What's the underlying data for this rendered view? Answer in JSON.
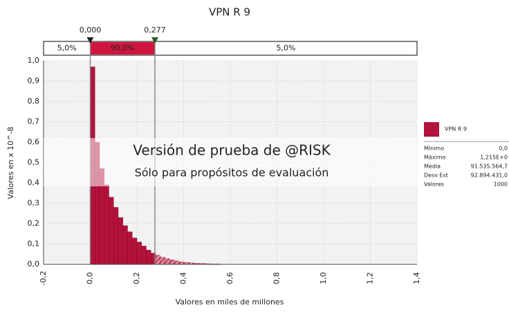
{
  "chart_data": {
    "type": "histogram",
    "title": "VPN R 9",
    "xlabel": "Valores en miles de millones",
    "ylabel": "Valores en x 10^-8",
    "bins": [
      0,
      0.02,
      0.04,
      0.06,
      0.08,
      0.1,
      0.12,
      0.14,
      0.16,
      0.18,
      0.2,
      0.22,
      0.24,
      0.26,
      0.28,
      0.3,
      0.32,
      0.34,
      0.36,
      0.38,
      0.4,
      0.42,
      0.44,
      0.46,
      0.48,
      0.5,
      0.52,
      0.54,
      0.56,
      0.58,
      0.6
    ],
    "counts": [
      0.97,
      0.6,
      0.47,
      0.39,
      0.33,
      0.28,
      0.23,
      0.19,
      0.16,
      0.13,
      0.11,
      0.09,
      0.07,
      0.055,
      0.045,
      0.035,
      0.028,
      0.022,
      0.017,
      0.013,
      0.01,
      0.008,
      0.006,
      0.005,
      0.004,
      0.003,
      0.002,
      0.002,
      0.001,
      0.001
    ],
    "color": "#b3123c",
    "tail_color": "#c9566f",
    "xlim": [
      -0.2,
      1.4
    ],
    "ylim": [
      0,
      1.0
    ],
    "xticks": [
      {
        "value": -0.2,
        "label": "-0,2"
      },
      {
        "value": 0,
        "label": "0,0"
      },
      {
        "value": 0.2,
        "label": "0,2"
      },
      {
        "value": 0.4,
        "label": "0,4"
      },
      {
        "value": 0.6,
        "label": "0,6"
      },
      {
        "value": 0.8,
        "label": "0,8"
      },
      {
        "value": 1.0,
        "label": "1,0"
      },
      {
        "value": 1.2,
        "label": "1,2"
      },
      {
        "value": 1.4,
        "label": "1,4"
      }
    ],
    "yticks": [
      {
        "value": 0,
        "label": "0,0"
      },
      {
        "value": 0.1,
        "label": "0,1"
      },
      {
        "value": 0.2,
        "label": "0,2"
      },
      {
        "value": 0.3,
        "label": "0,3"
      },
      {
        "value": 0.4,
        "label": "0,4"
      },
      {
        "value": 0.5,
        "label": "0,5"
      },
      {
        "value": 0.6,
        "label": "0,6"
      },
      {
        "value": 0.7,
        "label": "0,7"
      },
      {
        "value": 0.8,
        "label": "0,8"
      },
      {
        "value": 0.9,
        "label": "0,9"
      },
      {
        "value": 1.0,
        "label": "1,0"
      }
    ],
    "grid": true,
    "delimiters": {
      "left": {
        "value": 0,
        "label": "0,000"
      },
      "right": {
        "value": 0.277,
        "label": "0,277"
      },
      "regions": [
        {
          "value": 5,
          "label": "5,0%"
        },
        {
          "value": 90,
          "label": "90,0%"
        },
        {
          "value": 5,
          "label": "5,0%"
        }
      ]
    },
    "watermark": [
      "Versión de prueba de @RISK",
      "Sólo para propósitos de evaluación"
    ],
    "legend": {
      "name": "VPN R 9",
      "stats": [
        {
          "label": "Mínimo",
          "value": "0,0"
        },
        {
          "label": "Máximo",
          "value": "1,215E+0"
        },
        {
          "label": "Media",
          "value": "91.535.564,7"
        },
        {
          "label": "Desv Est",
          "value": "92.894.431,0"
        },
        {
          "label": "Valores",
          "value": 1000
        }
      ]
    }
  }
}
